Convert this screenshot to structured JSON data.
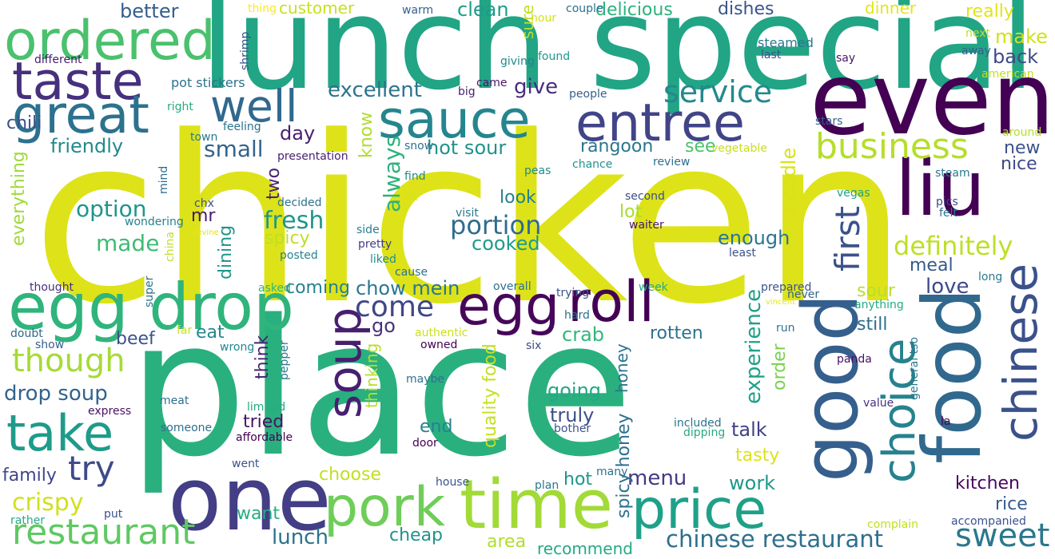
{
  "cloud": {
    "background": "#ffffff",
    "palette": [
      "#440154",
      "#482878",
      "#3e4a89",
      "#31688e",
      "#26828e",
      "#1f9e89",
      "#35b779",
      "#6ece58",
      "#b5de2b",
      "#dde318",
      "#fde725"
    ],
    "words": [
      {
        "text": "chicken",
        "color": "#dde318"
      },
      {
        "text": "place",
        "color": "#2ab07f"
      },
      {
        "text": "lunch special",
        "color": "#21a585"
      },
      {
        "text": "even",
        "color": "#440154"
      },
      {
        "text": "one",
        "color": "#433e85"
      },
      {
        "text": "food",
        "color": "#31688e"
      },
      {
        "text": "good",
        "color": "#355f8d"
      },
      {
        "text": "liu",
        "color": "#440154"
      },
      {
        "text": "time",
        "color": "#a2da37"
      },
      {
        "text": "egg drop",
        "color": "#2fb47c"
      },
      {
        "text": "ordered",
        "color": "#4ac16d"
      },
      {
        "text": "price",
        "color": "#1fa188"
      },
      {
        "text": "pork",
        "color": "#6ece58"
      },
      {
        "text": "egg",
        "color": "#46075a"
      },
      {
        "text": "roll",
        "color": "#440154"
      },
      {
        "text": "taste",
        "color": "#46307e"
      },
      {
        "text": "sauce",
        "color": "#25858e"
      },
      {
        "text": "entree",
        "color": "#414487"
      },
      {
        "text": "great",
        "color": "#2c728e"
      },
      {
        "text": "take",
        "color": "#1e9b8a"
      },
      {
        "text": "chinese",
        "color": "#3b518b"
      },
      {
        "text": "soup",
        "color": "#481f70"
      },
      {
        "text": "choice",
        "color": "#26828e"
      },
      {
        "text": "restaurant",
        "color": "#5ec962"
      },
      {
        "text": "well",
        "color": "#31688e"
      },
      {
        "text": "business",
        "color": "#b5de2b"
      },
      {
        "text": "first",
        "color": "#3b528b"
      },
      {
        "text": "though",
        "color": "#a5db36"
      },
      {
        "text": "try",
        "color": "#3e4a89"
      },
      {
        "text": "sweet",
        "color": "#2a788e"
      },
      {
        "text": "definitely",
        "color": "#bddf26"
      },
      {
        "text": "service",
        "color": "#23898e"
      },
      {
        "text": "come",
        "color": "#3f4788"
      },
      {
        "text": "portion",
        "color": "#2f6c8e"
      },
      {
        "text": "chinese restaurant",
        "color": "#2e6f8e"
      },
      {
        "text": "crispy",
        "color": "#d0e11c"
      },
      {
        "text": "experience",
        "color": "#1fa088"
      },
      {
        "text": "option",
        "color": "#1f958b"
      },
      {
        "text": "fresh",
        "color": "#1f968b"
      },
      {
        "text": "menu",
        "color": "#443a83"
      },
      {
        "text": "made",
        "color": "#3dbc74"
      },
      {
        "text": "drop soup",
        "color": "#33638d"
      },
      {
        "text": "always",
        "color": "#2db27d"
      },
      {
        "text": "small",
        "color": "#33638d"
      },
      {
        "text": "excellent",
        "color": "#2c738e"
      },
      {
        "text": "noodle",
        "color": "#d8e219"
      },
      {
        "text": "friendly",
        "color": "#23898e"
      },
      {
        "text": "chow mein",
        "color": "#2a778e"
      },
      {
        "text": "hot sour",
        "color": "#20928c"
      },
      {
        "text": "lunch",
        "color": "#2c738e"
      },
      {
        "text": "kitchen",
        "color": "#46085c"
      },
      {
        "text": "rice",
        "color": "#365c8d"
      },
      {
        "text": "cooked",
        "color": "#1f9a8a"
      },
      {
        "text": "give",
        "color": "#472d7b"
      },
      {
        "text": "day",
        "color": "#481f70"
      },
      {
        "text": "love",
        "color": "#3e4989"
      },
      {
        "text": "clean",
        "color": "#1e9c89"
      },
      {
        "text": "better",
        "color": "#355e8d"
      },
      {
        "text": "delicious",
        "color": "#2db27d"
      },
      {
        "text": "dishes",
        "color": "#39558c"
      },
      {
        "text": "customer",
        "color": "#c8e020"
      },
      {
        "text": "really",
        "color": "#e2e418"
      },
      {
        "text": "back",
        "color": "#3e4a89"
      },
      {
        "text": "make",
        "color": "#d0e11c"
      },
      {
        "text": "dinner",
        "color": "#e5e419"
      },
      {
        "text": "rangoon",
        "color": "#2a768e"
      },
      {
        "text": "see",
        "color": "#4ac16d"
      },
      {
        "text": "new",
        "color": "#3b528b"
      },
      {
        "text": "nice",
        "color": "#3f4889"
      },
      {
        "text": "know",
        "color": "#b0dd2f"
      },
      {
        "text": "look",
        "color": "#27808e"
      },
      {
        "text": "two",
        "color": "#482475"
      },
      {
        "text": "spicy",
        "color": "#bddf26"
      },
      {
        "text": "mr",
        "color": "#481a6c"
      },
      {
        "text": "dining",
        "color": "#1f958b"
      },
      {
        "text": "enough",
        "color": "#2a768e"
      },
      {
        "text": "meal",
        "color": "#375a8c"
      },
      {
        "text": "lot",
        "color": "#a8db34"
      },
      {
        "text": "coming",
        "color": "#26818e"
      },
      {
        "text": "sour",
        "color": "#bade28"
      },
      {
        "text": "still",
        "color": "#2e6e8e"
      },
      {
        "text": "go",
        "color": "#46327e"
      },
      {
        "text": "eat",
        "color": "#24878e"
      },
      {
        "text": "beef",
        "color": "#3b528b"
      },
      {
        "text": "think",
        "color": "#482475"
      },
      {
        "text": "crab",
        "color": "#33b67a"
      },
      {
        "text": "rotten",
        "color": "#2c728e"
      },
      {
        "text": "order",
        "color": "#7ad151"
      },
      {
        "text": "going",
        "color": "#22a884"
      },
      {
        "text": "honey",
        "color": "#2b748e"
      },
      {
        "text": "spicy honey",
        "color": "#2d708e"
      },
      {
        "text": "truly",
        "color": "#3c4f8a"
      },
      {
        "text": "talk",
        "color": "#424086"
      },
      {
        "text": "end",
        "color": "#26818e"
      },
      {
        "text": "tried",
        "color": "#471365"
      },
      {
        "text": "tasty",
        "color": "#dde318"
      },
      {
        "text": "work",
        "color": "#1f978b"
      },
      {
        "text": "hot",
        "color": "#1f968b"
      },
      {
        "text": "choose",
        "color": "#c2df23"
      },
      {
        "text": "quality food",
        "color": "#c5e021"
      },
      {
        "text": "thinking",
        "color": "#b8de29"
      },
      {
        "text": "cheap",
        "color": "#20928c"
      },
      {
        "text": "want",
        "color": "#26ad81"
      },
      {
        "text": "area",
        "color": "#b0dd2f"
      },
      {
        "text": "recommend",
        "color": "#24aa83"
      },
      {
        "text": "everything",
        "color": "#a0da39"
      },
      {
        "text": "family",
        "color": "#3f4788"
      },
      {
        "text": "chili",
        "color": "#3b518b"
      },
      {
        "text": "different",
        "color": "#481c6e"
      },
      {
        "text": "pot stickers",
        "color": "#2c738e"
      },
      {
        "text": "shrimp",
        "color": "#3b528b"
      },
      {
        "text": "thing",
        "color": "#fde725"
      },
      {
        "text": "warm",
        "color": "#355f8d"
      },
      {
        "text": "couple",
        "color": "#2d708e"
      },
      {
        "text": "hour",
        "color": "#d2e21b"
      },
      {
        "text": "giving",
        "color": "#24878e"
      },
      {
        "text": "found",
        "color": "#1f978b"
      },
      {
        "text": "sure",
        "color": "#c0df25"
      },
      {
        "text": "big",
        "color": "#482173"
      },
      {
        "text": "came",
        "color": "#481769"
      },
      {
        "text": "people",
        "color": "#355f8d"
      },
      {
        "text": "steamed",
        "color": "#2a788e"
      },
      {
        "text": "last",
        "color": "#3a548c"
      },
      {
        "text": "say",
        "color": "#481769"
      },
      {
        "text": "next",
        "color": "#c0df25"
      },
      {
        "text": "away",
        "color": "#355f8d"
      },
      {
        "text": "american",
        "color": "#c2df23"
      },
      {
        "text": "right",
        "color": "#25ab82"
      },
      {
        "text": "feeling",
        "color": "#2c738e"
      },
      {
        "text": "town",
        "color": "#2a788e"
      },
      {
        "text": "snow",
        "color": "#2c728e"
      },
      {
        "text": "presentation",
        "color": "#482173"
      },
      {
        "text": "vegetable",
        "color": "#c8e020"
      },
      {
        "text": "review",
        "color": "#2e6f8e"
      },
      {
        "text": "stars",
        "color": "#355f8d"
      },
      {
        "text": "around",
        "color": "#b2dd2d"
      },
      {
        "text": "steam",
        "color": "#2a788e"
      },
      {
        "text": "find",
        "color": "#23898e"
      },
      {
        "text": "peas",
        "color": "#23898e"
      },
      {
        "text": "chance",
        "color": "#20938c"
      },
      {
        "text": "mind",
        "color": "#2e6e8e"
      },
      {
        "text": "chx",
        "color": "#3b528b"
      },
      {
        "text": "decided",
        "color": "#2b748e"
      },
      {
        "text": "second",
        "color": "#3d4e8a"
      },
      {
        "text": "vegas",
        "color": "#1fa188"
      },
      {
        "text": "pics",
        "color": "#3f4889"
      },
      {
        "text": "felt",
        "color": "#2c728e"
      },
      {
        "text": "ok",
        "color": "#d5e21a"
      },
      {
        "text": "visit",
        "color": "#2a778e"
      },
      {
        "text": "wondering",
        "color": "#26818e"
      },
      {
        "text": "devine",
        "color": "#e2e418"
      },
      {
        "text": "china",
        "color": "#c2df23"
      },
      {
        "text": "waiter",
        "color": "#481769"
      },
      {
        "text": "side",
        "color": "#27808e"
      },
      {
        "text": "pretty",
        "color": "#433d84"
      },
      {
        "text": "posted",
        "color": "#25848e"
      },
      {
        "text": "liked",
        "color": "#218f8d"
      },
      {
        "text": "cause",
        "color": "#2e6f8e"
      },
      {
        "text": "least",
        "color": "#3b528b"
      },
      {
        "text": "long",
        "color": "#2a788e"
      },
      {
        "text": "thought",
        "color": "#46307e"
      },
      {
        "text": "super",
        "color": "#2c728e"
      },
      {
        "text": "asked",
        "color": "#31b57b"
      },
      {
        "text": "overall",
        "color": "#2d708e"
      },
      {
        "text": "trying",
        "color": "#3b528b"
      },
      {
        "text": "week",
        "color": "#24aa83"
      },
      {
        "text": "prepared",
        "color": "#3b528b"
      },
      {
        "text": "never",
        "color": "#33638d"
      },
      {
        "text": "vincent",
        "color": "#e5e419"
      },
      {
        "text": "anything",
        "color": "#25ab82"
      },
      {
        "text": "hard",
        "color": "#2e6f8e"
      },
      {
        "text": "doubt",
        "color": "#31688e"
      },
      {
        "text": "far",
        "color": "#c8e020"
      },
      {
        "text": "show",
        "color": "#355f8d"
      },
      {
        "text": "wrong",
        "color": "#24878e"
      },
      {
        "text": "authentic",
        "color": "#cae11f"
      },
      {
        "text": "owned",
        "color": "#440154"
      },
      {
        "text": "six",
        "color": "#3e4989"
      },
      {
        "text": "run",
        "color": "#2c738e"
      },
      {
        "text": "panda",
        "color": "#471164"
      },
      {
        "text": "pepper",
        "color": "#2a788e"
      },
      {
        "text": "maybe",
        "color": "#2c738e"
      },
      {
        "text": "meat",
        "color": "#2c738e"
      },
      {
        "text": "express",
        "color": "#471164"
      },
      {
        "text": "limited",
        "color": "#25ab82"
      },
      {
        "text": "value",
        "color": "#46327e"
      },
      {
        "text": "general tso",
        "color": "#2a788e"
      },
      {
        "text": "someone",
        "color": "#2e6f8e"
      },
      {
        "text": "affordable",
        "color": "#440154"
      },
      {
        "text": "included",
        "color": "#2c728e"
      },
      {
        "text": "dipping",
        "color": "#25ab82"
      },
      {
        "text": "bother",
        "color": "#3b528b"
      },
      {
        "text": "la",
        "color": "#440154"
      },
      {
        "text": "door",
        "color": "#440154"
      },
      {
        "text": "went",
        "color": "#3b528b"
      },
      {
        "text": "plan",
        "color": "#2a788e"
      },
      {
        "text": "many",
        "color": "#2c728e"
      },
      {
        "text": "house",
        "color": "#3b528b"
      },
      {
        "text": "put",
        "color": "#3b528b"
      },
      {
        "text": "rather",
        "color": "#25ab82"
      },
      {
        "text": "complain",
        "color": "#c2df23"
      },
      {
        "text": "accompanied",
        "color": "#3b528b"
      }
    ]
  }
}
